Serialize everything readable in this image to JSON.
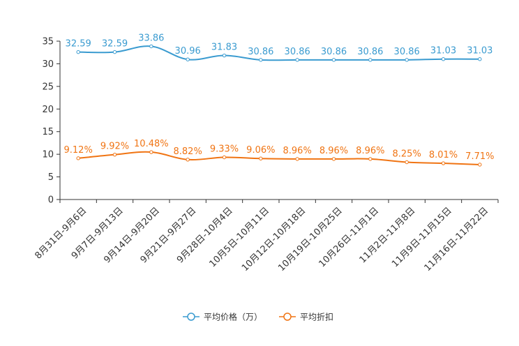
{
  "chart_data": {
    "type": "line",
    "title": "",
    "xlabel": "",
    "ylabel": "",
    "ylim": [
      0,
      35
    ],
    "yticks": [
      0,
      5,
      10,
      15,
      20,
      25,
      30,
      35
    ],
    "grid": false,
    "legend_position": "bottom",
    "categories": [
      "8月31日-9月6日",
      "9月7日-9月13日",
      "9月14日-9月20日",
      "9月21日-9月27日",
      "9月28日-10月4日",
      "10月5日-10月11日",
      "10月12日-10月18日",
      "10月19日-10月25日",
      "10月26日-11月1日",
      "11月2日-11月8日",
      "11月9日-11月15日",
      "11月16日-11月22日"
    ],
    "series": [
      {
        "name": "平均价格（万）",
        "color": "#3a9bd0",
        "values": [
          32.59,
          32.59,
          33.86,
          30.96,
          31.83,
          30.86,
          30.86,
          30.86,
          30.86,
          30.86,
          31.03,
          31.03
        ],
        "labels": [
          "32.59",
          "32.59",
          "33.86",
          "30.96",
          "31.83",
          "30.86",
          "30.86",
          "30.86",
          "30.86",
          "30.86",
          "31.03",
          "31.03"
        ]
      },
      {
        "name": "平均折扣",
        "color": "#f07413",
        "values": [
          9.12,
          9.92,
          10.48,
          8.82,
          9.33,
          9.06,
          8.96,
          8.96,
          8.96,
          8.25,
          8.01,
          7.71
        ],
        "labels": [
          "9.12%",
          "9.92%",
          "10.48%",
          "8.82%",
          "9.33%",
          "9.06%",
          "8.96%",
          "8.96%",
          "8.96%",
          "8.25%",
          "8.01%",
          "7.71%"
        ]
      }
    ]
  }
}
